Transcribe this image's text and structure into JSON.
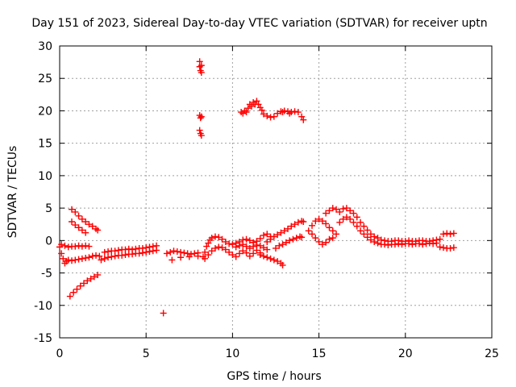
{
  "chart_data": {
    "type": "scatter",
    "title": "Day 151 of 2023, Sidereal Day-to-day VTEC variation (SDTVAR) for receiver uptn",
    "xlabel": "GPS time / hours",
    "ylabel": "SDTVAR / TECUs",
    "xlim": [
      0,
      25
    ],
    "ylim": [
      -15,
      30
    ],
    "xticks": [
      0,
      5,
      10,
      15,
      20,
      25
    ],
    "yticks": [
      -15,
      -10,
      -5,
      0,
      5,
      10,
      15,
      20,
      25,
      30
    ],
    "grid": true,
    "marker": "+",
    "color": "#ff0000",
    "series": [
      {
        "name": "SDTVAR",
        "points": [
          [
            0.0,
            -1.0
          ],
          [
            0.1,
            -2.0
          ],
          [
            0.2,
            -2.8
          ],
          [
            0.3,
            -3.5
          ],
          [
            0.4,
            -3.2
          ],
          [
            0.5,
            -3.0
          ],
          [
            0.7,
            -3.1
          ],
          [
            0.9,
            -3.0
          ],
          [
            1.1,
            -2.9
          ],
          [
            1.3,
            -2.8
          ],
          [
            1.5,
            -2.7
          ],
          [
            1.7,
            -2.6
          ],
          [
            1.9,
            -2.4
          ],
          [
            2.1,
            -2.3
          ],
          [
            2.3,
            -2.4
          ],
          [
            0.1,
            -0.6
          ],
          [
            0.3,
            -0.8
          ],
          [
            0.5,
            -1.0
          ],
          [
            0.7,
            -0.9
          ],
          [
            0.9,
            -0.9
          ],
          [
            1.1,
            -0.8
          ],
          [
            1.3,
            -0.9
          ],
          [
            1.5,
            -0.8
          ],
          [
            1.7,
            -0.9
          ],
          [
            0.7,
            4.8
          ],
          [
            0.9,
            4.4
          ],
          [
            1.1,
            3.8
          ],
          [
            1.3,
            3.3
          ],
          [
            1.5,
            2.9
          ],
          [
            1.7,
            2.5
          ],
          [
            1.9,
            2.2
          ],
          [
            2.1,
            1.8
          ],
          [
            2.2,
            1.6
          ],
          [
            0.7,
            2.9
          ],
          [
            0.9,
            2.4
          ],
          [
            1.1,
            2.0
          ],
          [
            1.3,
            1.6
          ],
          [
            1.5,
            1.2
          ],
          [
            0.6,
            -8.6
          ],
          [
            0.8,
            -8.0
          ],
          [
            1.0,
            -7.5
          ],
          [
            1.2,
            -7.0
          ],
          [
            1.4,
            -6.6
          ],
          [
            1.6,
            -6.2
          ],
          [
            1.8,
            -5.9
          ],
          [
            2.0,
            -5.6
          ],
          [
            2.2,
            -5.3
          ],
          [
            2.4,
            -3.0
          ],
          [
            2.6,
            -2.8
          ],
          [
            2.8,
            -2.6
          ],
          [
            3.0,
            -2.5
          ],
          [
            3.2,
            -2.4
          ],
          [
            3.4,
            -2.3
          ],
          [
            3.6,
            -2.3
          ],
          [
            3.8,
            -2.2
          ],
          [
            4.0,
            -2.1
          ],
          [
            4.2,
            -2.1
          ],
          [
            4.4,
            -2.0
          ],
          [
            4.6,
            -2.0
          ],
          [
            4.8,
            -1.9
          ],
          [
            5.0,
            -1.8
          ],
          [
            5.2,
            -1.7
          ],
          [
            5.4,
            -1.6
          ],
          [
            5.6,
            -1.5
          ],
          [
            2.6,
            -1.8
          ],
          [
            2.8,
            -1.7
          ],
          [
            3.0,
            -1.6
          ],
          [
            3.2,
            -1.6
          ],
          [
            3.4,
            -1.5
          ],
          [
            3.6,
            -1.4
          ],
          [
            3.8,
            -1.4
          ],
          [
            4.0,
            -1.3
          ],
          [
            4.2,
            -1.4
          ],
          [
            4.4,
            -1.3
          ],
          [
            4.6,
            -1.2
          ],
          [
            4.8,
            -1.2
          ],
          [
            5.0,
            -1.1
          ],
          [
            5.2,
            -1.0
          ],
          [
            5.4,
            -0.9
          ],
          [
            5.6,
            -0.8
          ],
          [
            6.0,
            -11.2
          ],
          [
            6.2,
            -2.0
          ],
          [
            6.4,
            -1.8
          ],
          [
            6.6,
            -1.6
          ],
          [
            6.8,
            -1.7
          ],
          [
            7.0,
            -1.8
          ],
          [
            7.2,
            -1.9
          ],
          [
            7.4,
            -2.0
          ],
          [
            7.6,
            -2.1
          ],
          [
            7.8,
            -2.0
          ],
          [
            8.0,
            -1.9
          ],
          [
            6.5,
            -3.0
          ],
          [
            7.0,
            -2.6
          ],
          [
            7.5,
            -2.5
          ],
          [
            8.0,
            -2.4
          ],
          [
            8.1,
            27.6
          ],
          [
            8.1,
            26.8
          ],
          [
            8.15,
            26.2
          ],
          [
            8.2,
            27.0
          ],
          [
            8.2,
            25.9
          ],
          [
            8.1,
            19.3
          ],
          [
            8.15,
            18.9
          ],
          [
            8.2,
            19.1
          ],
          [
            8.1,
            17.0
          ],
          [
            8.15,
            16.5
          ],
          [
            8.2,
            16.2
          ],
          [
            8.3,
            -2.5
          ],
          [
            8.4,
            -1.8
          ],
          [
            8.5,
            -0.9
          ],
          [
            8.6,
            -0.4
          ],
          [
            8.7,
            0.1
          ],
          [
            8.8,
            0.4
          ],
          [
            9.0,
            0.6
          ],
          [
            9.2,
            0.5
          ],
          [
            9.4,
            0.2
          ],
          [
            9.6,
            -0.2
          ],
          [
            9.8,
            -0.5
          ],
          [
            10.0,
            -0.6
          ],
          [
            10.2,
            -0.4
          ],
          [
            10.4,
            -0.2
          ],
          [
            10.6,
            0.1
          ],
          [
            10.8,
            0.2
          ],
          [
            11.0,
            0.0
          ],
          [
            11.2,
            -0.3
          ],
          [
            11.4,
            -0.1
          ],
          [
            11.6,
            0.3
          ],
          [
            11.8,
            0.8
          ],
          [
            12.0,
            1.0
          ],
          [
            12.2,
            0.6
          ],
          [
            8.4,
            -2.8
          ],
          [
            8.6,
            -2.2
          ],
          [
            8.8,
            -1.6
          ],
          [
            9.0,
            -1.2
          ],
          [
            9.2,
            -1.0
          ],
          [
            9.4,
            -1.1
          ],
          [
            9.6,
            -1.4
          ],
          [
            9.8,
            -1.8
          ],
          [
            10.0,
            -2.2
          ],
          [
            10.2,
            -2.5
          ],
          [
            10.4,
            -2.0
          ],
          [
            10.6,
            -1.6
          ],
          [
            10.8,
            -1.9
          ],
          [
            11.0,
            -2.4
          ],
          [
            11.2,
            -2.0
          ],
          [
            11.4,
            -1.5
          ],
          [
            11.6,
            -1.9
          ],
          [
            10.2,
            -1.0
          ],
          [
            10.4,
            -0.8
          ],
          [
            10.6,
            -0.6
          ],
          [
            10.8,
            -0.9
          ],
          [
            11.0,
            -1.2
          ],
          [
            11.2,
            -0.9
          ],
          [
            11.4,
            -0.7
          ],
          [
            11.6,
            -0.8
          ],
          [
            11.8,
            -1.1
          ],
          [
            12.0,
            -1.4
          ],
          [
            11.6,
            -2.2
          ],
          [
            11.8,
            -2.4
          ],
          [
            12.0,
            -2.6
          ],
          [
            12.2,
            -2.8
          ],
          [
            12.4,
            -3.0
          ],
          [
            12.6,
            -3.2
          ],
          [
            12.8,
            -3.5
          ],
          [
            12.9,
            -3.8
          ],
          [
            12.0,
            -0.2
          ],
          [
            12.2,
            0.2
          ],
          [
            12.4,
            0.6
          ],
          [
            12.6,
            0.9
          ],
          [
            12.8,
            1.2
          ],
          [
            13.0,
            1.5
          ],
          [
            13.2,
            1.8
          ],
          [
            13.4,
            2.2
          ],
          [
            13.6,
            2.5
          ],
          [
            13.8,
            2.8
          ],
          [
            14.0,
            3.0
          ],
          [
            14.1,
            2.9
          ],
          [
            12.5,
            -1.2
          ],
          [
            12.7,
            -0.8
          ],
          [
            12.9,
            -0.6
          ],
          [
            13.1,
            -0.3
          ],
          [
            13.3,
            0.0
          ],
          [
            13.5,
            0.2
          ],
          [
            13.7,
            0.4
          ],
          [
            13.9,
            0.6
          ],
          [
            14.0,
            0.5
          ],
          [
            10.5,
            19.8
          ],
          [
            10.7,
            20.0
          ],
          [
            10.9,
            20.4
          ],
          [
            11.0,
            21.0
          ],
          [
            11.2,
            21.3
          ],
          [
            11.4,
            21.5
          ],
          [
            11.5,
            21.0
          ],
          [
            11.6,
            20.5
          ],
          [
            11.7,
            20.1
          ],
          [
            11.8,
            19.5
          ],
          [
            12.0,
            19.2
          ],
          [
            12.2,
            19.0
          ],
          [
            12.4,
            19.1
          ],
          [
            12.6,
            19.6
          ],
          [
            12.8,
            19.9
          ],
          [
            13.0,
            20.0
          ],
          [
            13.2,
            19.9
          ],
          [
            13.4,
            19.8
          ],
          [
            13.6,
            19.9
          ],
          [
            13.8,
            19.8
          ],
          [
            14.0,
            19.1
          ],
          [
            14.1,
            18.6
          ],
          [
            10.6,
            19.6
          ],
          [
            10.8,
            19.8
          ],
          [
            11.1,
            20.7
          ],
          [
            11.3,
            21.0
          ],
          [
            12.9,
            19.8
          ],
          [
            13.3,
            19.6
          ],
          [
            14.4,
            1.5
          ],
          [
            14.6,
            2.3
          ],
          [
            14.8,
            3.0
          ],
          [
            15.0,
            3.3
          ],
          [
            15.2,
            3.0
          ],
          [
            15.4,
            2.6
          ],
          [
            15.6,
            2.0
          ],
          [
            15.8,
            1.5
          ],
          [
            16.0,
            1.0
          ],
          [
            14.6,
            1.0
          ],
          [
            14.8,
            0.4
          ],
          [
            15.0,
            -0.2
          ],
          [
            15.2,
            -0.6
          ],
          [
            15.4,
            -0.3
          ],
          [
            15.6,
            0.2
          ],
          [
            15.8,
            0.4
          ],
          [
            15.4,
            4.2
          ],
          [
            15.6,
            4.6
          ],
          [
            15.8,
            5.0
          ],
          [
            16.0,
            4.8
          ],
          [
            16.2,
            4.4
          ],
          [
            16.4,
            4.9
          ],
          [
            16.6,
            5.0
          ],
          [
            16.8,
            4.6
          ],
          [
            17.0,
            4.2
          ],
          [
            17.2,
            3.6
          ],
          [
            17.4,
            2.8
          ],
          [
            17.6,
            2.2
          ],
          [
            17.8,
            1.6
          ],
          [
            18.0,
            1.0
          ],
          [
            18.2,
            0.6
          ],
          [
            18.4,
            0.4
          ],
          [
            16.2,
            2.8
          ],
          [
            16.4,
            3.3
          ],
          [
            16.6,
            3.6
          ],
          [
            16.8,
            3.3
          ],
          [
            17.0,
            2.8
          ],
          [
            17.2,
            2.2
          ],
          [
            17.4,
            1.5
          ],
          [
            17.6,
            1.0
          ],
          [
            17.8,
            0.5
          ],
          [
            18.0,
            0.1
          ],
          [
            18.2,
            -0.2
          ],
          [
            18.4,
            -0.4
          ],
          [
            18.6,
            0.1
          ],
          [
            18.8,
            0.0
          ],
          [
            19.0,
            -0.1
          ],
          [
            19.2,
            -0.1
          ],
          [
            19.4,
            0.0
          ],
          [
            19.6,
            0.0
          ],
          [
            19.8,
            -0.1
          ],
          [
            20.0,
            -0.1
          ],
          [
            20.2,
            0.0
          ],
          [
            20.4,
            -0.1
          ],
          [
            20.6,
            -0.1
          ],
          [
            20.8,
            0.0
          ],
          [
            21.0,
            0.0
          ],
          [
            21.2,
            -0.1
          ],
          [
            21.4,
            -0.1
          ],
          [
            21.6,
            0.0
          ],
          [
            21.8,
            0.1
          ],
          [
            22.0,
            0.2
          ],
          [
            18.6,
            -0.6
          ],
          [
            18.8,
            -0.6
          ],
          [
            19.0,
            -0.7
          ],
          [
            19.2,
            -0.6
          ],
          [
            19.4,
            -0.6
          ],
          [
            19.6,
            -0.5
          ],
          [
            19.8,
            -0.6
          ],
          [
            20.0,
            -0.5
          ],
          [
            20.2,
            -0.5
          ],
          [
            20.4,
            -0.6
          ],
          [
            20.6,
            -0.5
          ],
          [
            20.8,
            -0.5
          ],
          [
            21.0,
            -0.6
          ],
          [
            21.2,
            -0.5
          ],
          [
            21.4,
            -0.4
          ],
          [
            21.6,
            -0.5
          ],
          [
            21.8,
            -0.4
          ],
          [
            22.0,
            -1.0
          ],
          [
            22.2,
            -1.1
          ],
          [
            22.4,
            -1.2
          ],
          [
            22.6,
            -1.2
          ],
          [
            22.8,
            -1.1
          ],
          [
            22.2,
            1.0
          ],
          [
            22.4,
            1.1
          ],
          [
            22.6,
            1.0
          ],
          [
            22.8,
            1.1
          ]
        ]
      }
    ]
  }
}
